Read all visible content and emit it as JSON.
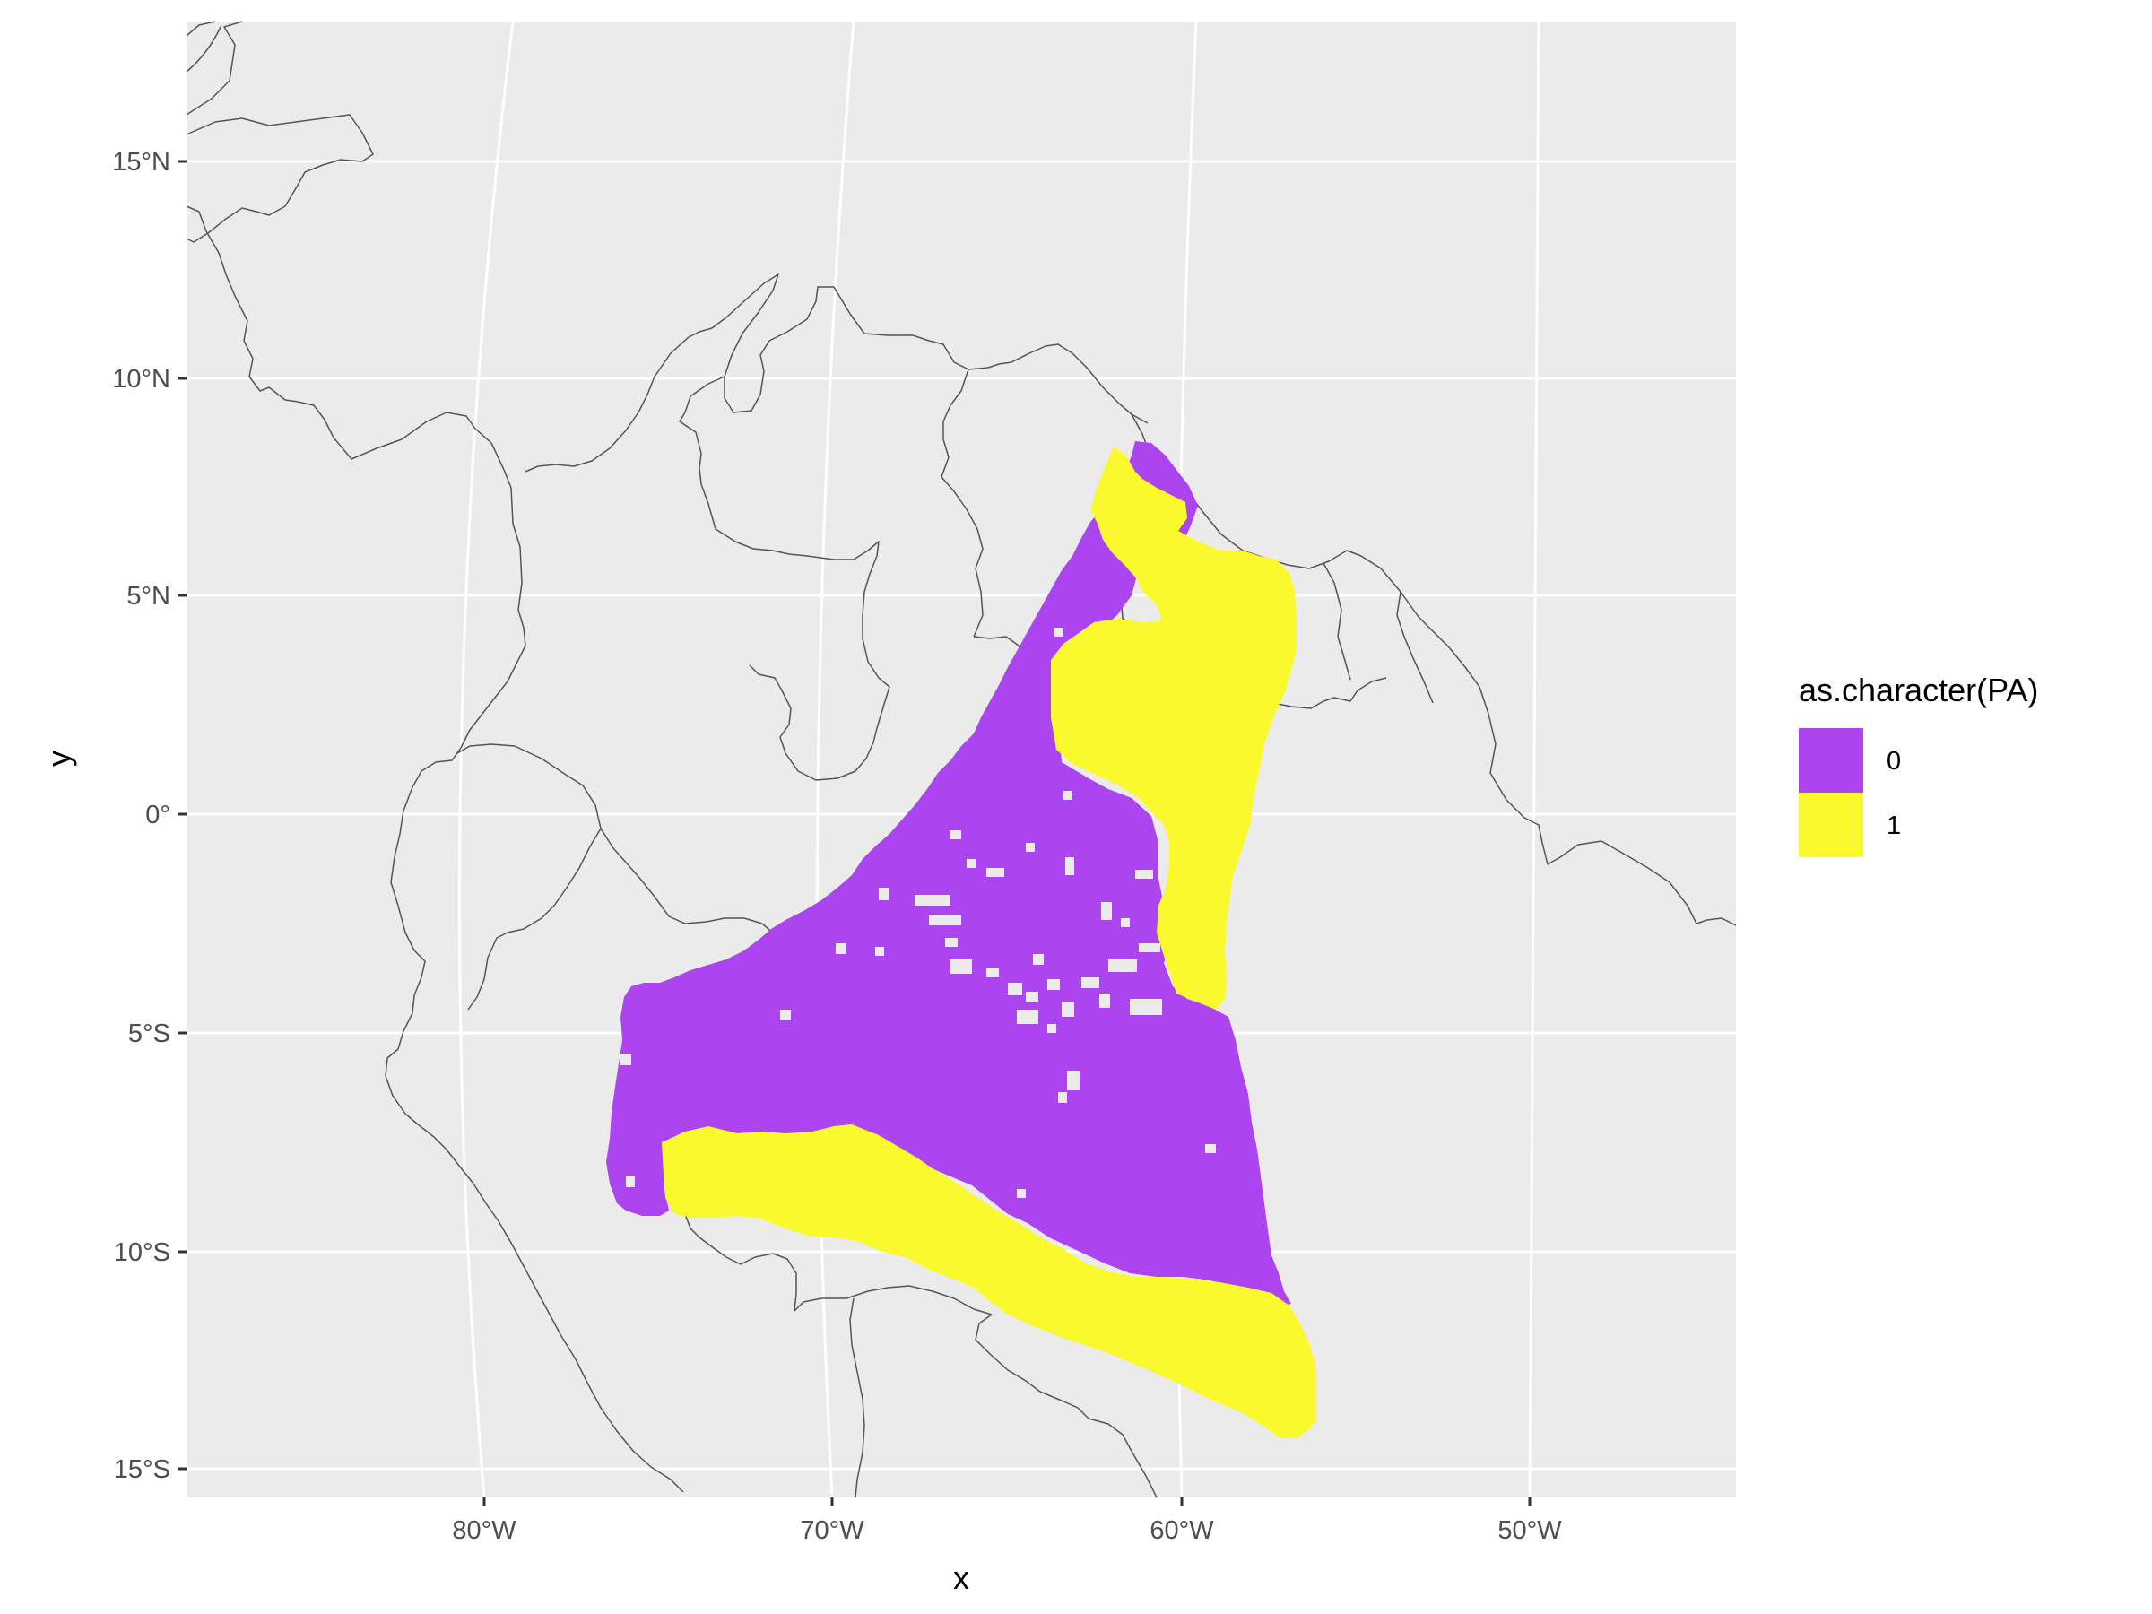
{
  "chart_data": {
    "type": "map",
    "xlabel": "x",
    "ylabel": "y",
    "x_ticks": [
      "80°W",
      "70°W",
      "60°W",
      "50°W"
    ],
    "y_ticks": [
      "15°N",
      "10°N",
      "5°N",
      "0°",
      "5°S",
      "10°S",
      "15°S"
    ],
    "xlim": [
      -88.7,
      -44.0
    ],
    "ylim": [
      -15.8,
      18.0
    ],
    "grid": true,
    "legend": {
      "title": "as.character(PA)",
      "position": "right",
      "entries": [
        {
          "label": "0",
          "color": "#ac44f0"
        },
        {
          "label": "1",
          "color": "#faf92e"
        }
      ]
    },
    "panel_background": "#ebebeb",
    "gridline_color": "#ffffff",
    "coastline_color": "#555555"
  }
}
